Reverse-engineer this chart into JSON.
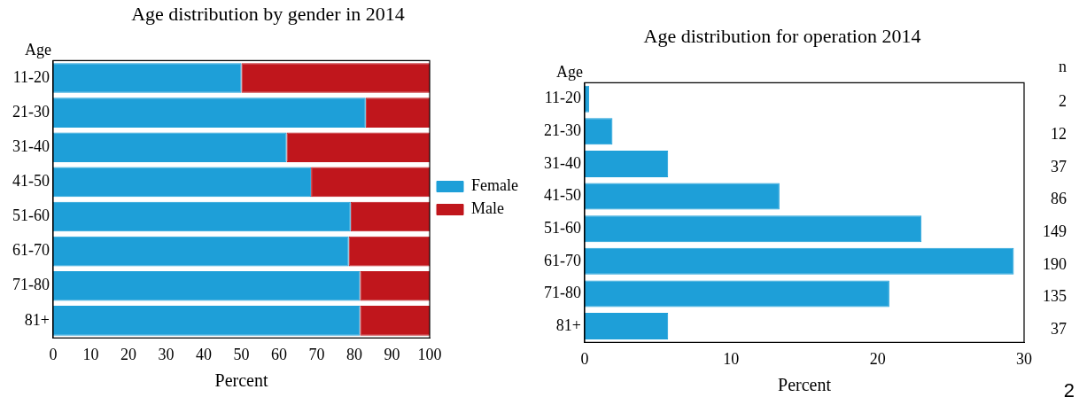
{
  "chart_data": [
    {
      "type": "bar",
      "title": "Age distribution by gender in 2014",
      "xlabel": "Percent",
      "ylabel": "Age",
      "orientation": "horizontal",
      "stacked": true,
      "categories": [
        "11-20",
        "21-30",
        "31-40",
        "41-50",
        "51-60",
        "61-70",
        "71-80",
        "81+"
      ],
      "series": [
        {
          "name": "Female",
          "color": "#1e9fd8",
          "values": [
            50,
            83,
            62,
            68.5,
            79,
            78.5,
            81.5,
            81.5
          ]
        },
        {
          "name": "Male",
          "color": "#c0161c",
          "values": [
            50,
            17,
            38,
            31.5,
            21,
            21.5,
            18.5,
            18.5
          ]
        }
      ],
      "xlim": [
        0,
        100
      ],
      "xticks": [
        0,
        10,
        20,
        30,
        40,
        50,
        60,
        70,
        80,
        90,
        100
      ],
      "grid": false,
      "legend": "right"
    },
    {
      "type": "bar",
      "title": "Age distribution for operation 2014",
      "xlabel": "Percent",
      "ylabel": "Age",
      "orientation": "horizontal",
      "categories": [
        "11-20",
        "21-30",
        "31-40",
        "41-50",
        "51-60",
        "61-70",
        "71-80",
        "81+"
      ],
      "values": [
        0.3,
        1.9,
        5.7,
        13.3,
        23.0,
        29.3,
        20.8,
        5.7
      ],
      "color": "#1e9fd8",
      "xlim": [
        0,
        30
      ],
      "xticks": [
        0,
        10,
        20,
        30
      ],
      "grid": false,
      "annotations": [
        "n",
        "2",
        "12",
        "37",
        "86",
        "149",
        "190",
        "135",
        "37",
        "2"
      ]
    }
  ]
}
